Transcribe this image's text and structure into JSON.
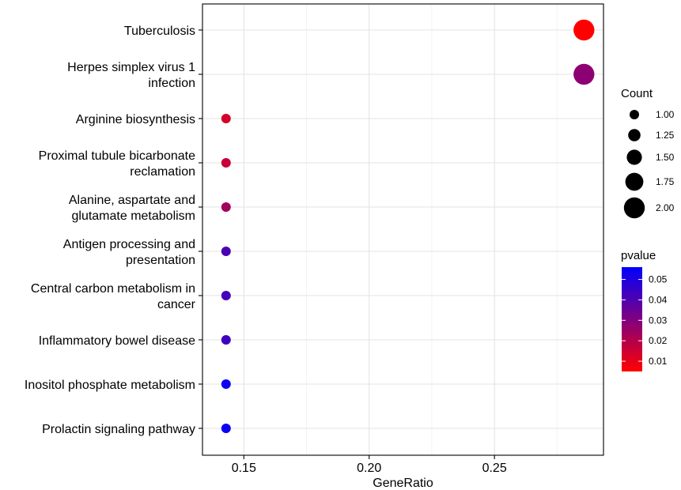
{
  "chart_data": {
    "type": "scatter",
    "xlabel": "GeneRatio",
    "ylabel": "",
    "xlim": [
      0.1335,
      0.2935
    ],
    "xticks": [
      0.15,
      0.2,
      0.25
    ],
    "xtick_labels": [
      "0.15",
      "0.20",
      "0.25"
    ],
    "grid": true,
    "categories": [
      {
        "name": "Tuberculosis",
        "lines": [
          "Tuberculosis"
        ],
        "x": 0.2857,
        "count": 2,
        "pvalue": 0.005
      },
      {
        "name": "Herpes simplex virus 1 infection",
        "lines": [
          "Herpes simplex virus 1",
          "infection"
        ],
        "x": 0.2857,
        "count": 2,
        "pvalue": 0.028
      },
      {
        "name": "Arginine biosynthesis",
        "lines": [
          "Arginine biosynthesis"
        ],
        "x": 0.1429,
        "count": 1,
        "pvalue": 0.013
      },
      {
        "name": "Proximal tubule bicarbonate reclamation",
        "lines": [
          "Proximal tubule bicarbonate",
          "reclamation"
        ],
        "x": 0.1429,
        "count": 1,
        "pvalue": 0.016
      },
      {
        "name": "Alanine, aspartate and glutamate metabolism",
        "lines": [
          "Alanine, aspartate and",
          "glutamate metabolism"
        ],
        "x": 0.1429,
        "count": 1,
        "pvalue": 0.024
      },
      {
        "name": "Antigen processing and presentation",
        "lines": [
          "Antigen processing and",
          "presentation"
        ],
        "x": 0.1429,
        "count": 1,
        "pvalue": 0.041
      },
      {
        "name": "Central carbon metabolism in cancer",
        "lines": [
          "Central carbon metabolism in",
          "cancer"
        ],
        "x": 0.1429,
        "count": 1,
        "pvalue": 0.042
      },
      {
        "name": "Inflammatory bowel disease",
        "lines": [
          "Inflammatory bowel disease"
        ],
        "x": 0.1429,
        "count": 1,
        "pvalue": 0.043
      },
      {
        "name": "Inositol phosphate metabolism",
        "lines": [
          "Inositol phosphate metabolism"
        ],
        "x": 0.1429,
        "count": 1,
        "pvalue": 0.053
      },
      {
        "name": "Prolactin signaling pathway",
        "lines": [
          "Prolactin signaling pathway"
        ],
        "x": 0.1429,
        "count": 1,
        "pvalue": 0.054
      }
    ],
    "size_legend": {
      "title": "Count",
      "values": [
        1.0,
        1.25,
        1.5,
        1.75,
        2.0
      ],
      "labels": [
        "1.00",
        "1.25",
        "1.50",
        "1.75",
        "2.00"
      ]
    },
    "color_legend": {
      "title": "pvalue",
      "range": [
        0.005,
        0.056
      ],
      "ticks": [
        0.01,
        0.02,
        0.03,
        0.04,
        0.05
      ],
      "labels": [
        "0.01",
        "0.02",
        "0.03",
        "0.04",
        "0.05"
      ],
      "low_color": "#ff0000",
      "high_color": "#0000ff"
    }
  }
}
